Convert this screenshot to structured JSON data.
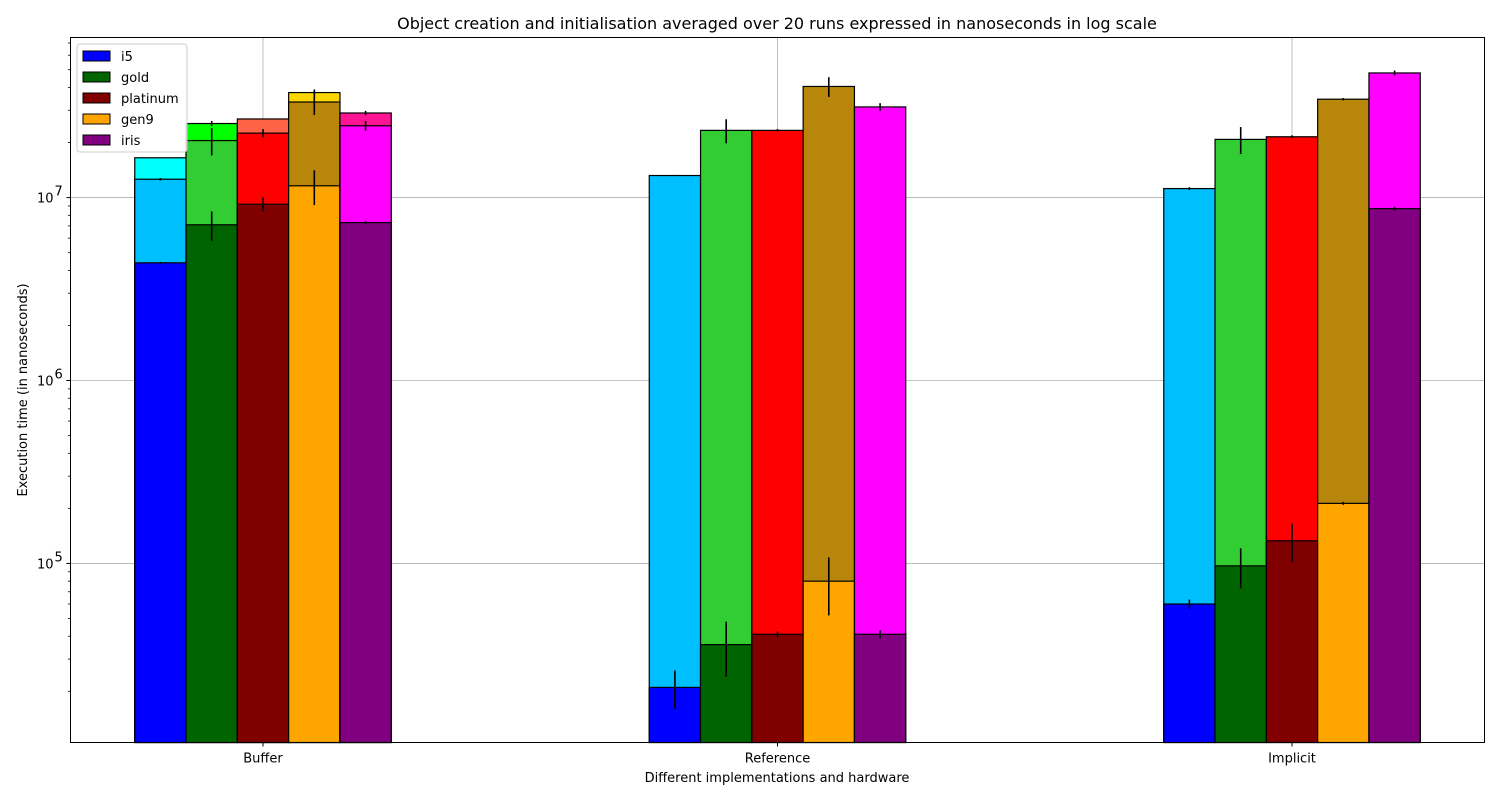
{
  "chart_data": {
    "type": "bar",
    "title": "Object creation and initialisation averaged over 20 runs expressed in nanoseconds in log scale",
    "xlabel": "Different implementations and hardware",
    "ylabel": "Execution time (in nanoseconds)",
    "yscale": "log",
    "ylim": [
      10500,
      75000000
    ],
    "y_ticks": [
      {
        "value": 100000,
        "base": "10",
        "exp": "5"
      },
      {
        "value": 1000000,
        "base": "10",
        "exp": "6"
      },
      {
        "value": 10000000,
        "base": "10",
        "exp": "7"
      }
    ],
    "grid": true,
    "legend_placement": "top-left",
    "categories": [
      "Buffer",
      "Reference",
      "Implicit"
    ],
    "series": [
      {
        "name": "i5",
        "legend_color": "#0000ff",
        "segments": [
          {
            "color": "#0000ff",
            "values": [
              4400000,
              21000,
              60000
            ],
            "errors": [
              50000,
              5000,
              3500
            ]
          },
          {
            "color": "#00bfff",
            "values": [
              12600000,
              13200000,
              11200000
            ],
            "errors": [
              200000,
              100000,
              200000
            ]
          },
          {
            "color": "#00ffff",
            "values": [
              16500000,
              null,
              null
            ],
            "errors": [
              null,
              null,
              null
            ]
          }
        ]
      },
      {
        "name": "gold",
        "legend_color": "#006400",
        "segments": [
          {
            "color": "#006400",
            "values": [
              7100000,
              36000,
              97000
            ],
            "errors": [
              1300000,
              12000,
              24000
            ]
          },
          {
            "color": "#32cd32",
            "values": [
              20500000,
              23300000,
              20800000
            ],
            "errors": [
              3500000,
              3500000,
              3500000
            ]
          },
          {
            "color": "#00ff00",
            "values": [
              25400000,
              null,
              null
            ],
            "errors": [
              800000,
              null,
              null
            ]
          }
        ]
      },
      {
        "name": "platinum",
        "legend_color": "#800000",
        "segments": [
          {
            "color": "#800000",
            "values": [
              9200000,
              41000,
              133000
            ],
            "errors": [
              800000,
              1500,
              32000
            ]
          },
          {
            "color": "#ff0000",
            "values": [
              22500000,
              23300000,
              21500000
            ],
            "errors": [
              1200000,
              400000,
              400000
            ]
          },
          {
            "color": "#ff6347",
            "values": [
              26900000,
              null,
              null
            ],
            "errors": [
              null,
              null,
              null
            ]
          }
        ]
      },
      {
        "name": "gen9",
        "legend_color": "#ffa500",
        "segments": [
          {
            "color": "#ffa500",
            "values": [
              11600000,
              80000,
              213000
            ],
            "errors": [
              2500000,
              28000,
              4000
            ]
          },
          {
            "color": "#b8860b",
            "values": [
              33300000,
              40500000,
              34500000
            ],
            "errors": [
              5000000,
              5000000,
              500000
            ]
          },
          {
            "color": "#ffd700",
            "values": [
              37500000,
              null,
              null
            ],
            "errors": [
              1500000,
              null,
              null
            ]
          }
        ]
      },
      {
        "name": "iris",
        "legend_color": "#800080",
        "segments": [
          {
            "color": "#800080",
            "values": [
              7300000,
              41000,
              8700000
            ],
            "errors": [
              150000,
              2000,
              200000
            ]
          },
          {
            "color": "#ff00ff",
            "values": [
              24700000,
              31300000,
              48000000
            ],
            "errors": [
              1500000,
              1500000,
              1500000
            ]
          },
          {
            "color": "#ff1493",
            "values": [
              29000000,
              null,
              null
            ],
            "errors": [
              800000,
              null,
              null
            ]
          }
        ]
      }
    ]
  }
}
